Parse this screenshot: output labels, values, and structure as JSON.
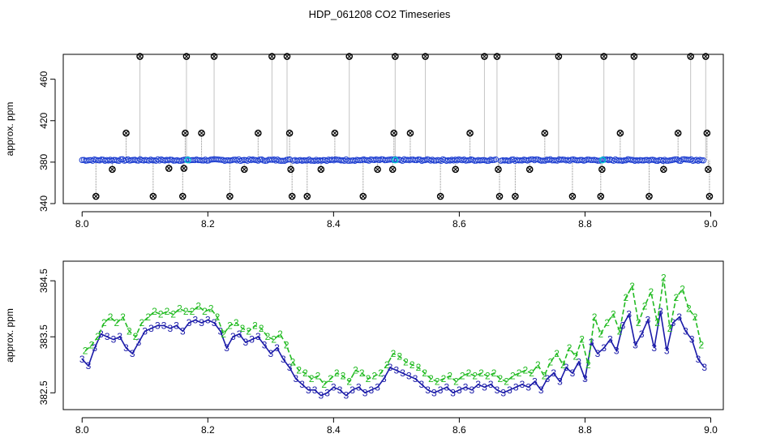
{
  "title": "HDP_061208  CO2 Timeseries",
  "chart_data": [
    {
      "type": "scatter",
      "title": "HDP_061208  CO2 Timeseries",
      "ylabel": "approx. ppm",
      "xlim": [
        7.97,
        9.02
      ],
      "ylim": [
        340,
        484
      ],
      "x_ticks": [
        8.0,
        8.2,
        8.4,
        8.6,
        8.8,
        9.0
      ],
      "x_tick_labels": [
        "8.0",
        "8.2",
        "8.4",
        "8.6",
        "8.8",
        "9.0"
      ],
      "y_ticks": [
        340,
        380,
        420,
        460
      ],
      "y_tick_labels": [
        "340",
        "380",
        "420",
        "460"
      ],
      "baseline": {
        "level": 382,
        "color": "#1f3fd0",
        "marker": "open-circle"
      },
      "baseline_gaps": [
        8.333,
        8.662
      ],
      "highlight_points": {
        "x": [
          8.168,
          8.498,
          8.828
        ],
        "y": [
          382,
          382,
          382
        ],
        "color": "#00d0d0"
      },
      "outliers": {
        "color": "#000000",
        "marker": "circle-x",
        "x": [
          8.022,
          8.048,
          8.07,
          8.092,
          8.113,
          8.138,
          8.16,
          8.162,
          8.164,
          8.166,
          8.19,
          8.21,
          8.235,
          8.258,
          8.28,
          8.302,
          8.326,
          8.33,
          8.332,
          8.334,
          8.358,
          8.38,
          8.402,
          8.425,
          8.447,
          8.47,
          8.494,
          8.496,
          8.498,
          8.522,
          8.546,
          8.57,
          8.594,
          8.617,
          8.64,
          8.66,
          8.662,
          8.664,
          8.689,
          8.712,
          8.736,
          8.758,
          8.78,
          8.825,
          8.827,
          8.83,
          8.856,
          8.878,
          8.902,
          8.925,
          8.948,
          8.968,
          8.992,
          8.994,
          8.996,
          8.998
        ],
        "y": [
          347,
          373,
          408,
          482,
          347,
          374,
          347,
          374,
          408,
          482,
          408,
          482,
          347,
          373,
          408,
          482,
          482,
          408,
          373,
          347,
          347,
          373,
          408,
          482,
          347,
          373,
          373,
          408,
          482,
          408,
          482,
          347,
          373,
          408,
          482,
          482,
          373,
          347,
          347,
          373,
          408,
          482,
          347,
          347,
          373,
          482,
          408,
          482,
          347,
          373,
          408,
          482,
          482,
          408,
          373,
          347
        ]
      }
    },
    {
      "type": "line",
      "ylabel": "approx. ppm",
      "xlim": [
        7.97,
        9.02
      ],
      "ylim": [
        382.2,
        384.85
      ],
      "x_ticks": [
        8.0,
        8.2,
        8.4,
        8.6,
        8.8,
        9.0
      ],
      "x_tick_labels": [
        "8.0",
        "8.2",
        "8.4",
        "8.6",
        "8.8",
        "9.0"
      ],
      "y_ticks": [
        382.5,
        383.5,
        384.5
      ],
      "y_tick_labels": [
        "382.5",
        "383.5",
        "384.5"
      ],
      "series": [
        {
          "marker": "3",
          "color": "#1a1aa8",
          "x": [
            8.0,
            8.01,
            8.02,
            8.03,
            8.04,
            8.05,
            8.06,
            8.07,
            8.08,
            8.09,
            8.1,
            8.11,
            8.12,
            8.13,
            8.14,
            8.15,
            8.16,
            8.17,
            8.18,
            8.19,
            8.2,
            8.21,
            8.22,
            8.23,
            8.24,
            8.25,
            8.26,
            8.27,
            8.28,
            8.29,
            8.3,
            8.31,
            8.32,
            8.33,
            8.34,
            8.35,
            8.36,
            8.37,
            8.38,
            8.39,
            8.4,
            8.41,
            8.42,
            8.43,
            8.44,
            8.45,
            8.46,
            8.47,
            8.48,
            8.49,
            8.5,
            8.51,
            8.52,
            8.53,
            8.54,
            8.55,
            8.56,
            8.57,
            8.58,
            8.59,
            8.6,
            8.61,
            8.62,
            8.63,
            8.64,
            8.65,
            8.66,
            8.67,
            8.68,
            8.69,
            8.7,
            8.71,
            8.72,
            8.73,
            8.74,
            8.75,
            8.76,
            8.77,
            8.78,
            8.79,
            8.8,
            8.81,
            8.82,
            8.83,
            8.84,
            8.85,
            8.86,
            8.87,
            8.88,
            8.89,
            8.9,
            8.91,
            8.92,
            8.93,
            8.94,
            8.95,
            8.96,
            8.97,
            8.98,
            8.99
          ],
          "values": [
            383.1,
            382.98,
            383.3,
            383.55,
            383.5,
            383.45,
            383.5,
            383.3,
            383.2,
            383.4,
            383.6,
            383.65,
            383.7,
            383.7,
            383.65,
            383.7,
            383.6,
            383.75,
            383.8,
            383.75,
            383.8,
            383.75,
            383.6,
            383.3,
            383.5,
            383.55,
            383.4,
            383.45,
            383.5,
            383.35,
            383.2,
            383.3,
            383.1,
            382.95,
            382.75,
            382.65,
            382.55,
            382.55,
            382.45,
            382.5,
            382.6,
            382.55,
            382.45,
            382.55,
            382.6,
            382.5,
            382.55,
            382.6,
            382.75,
            382.95,
            382.9,
            382.85,
            382.8,
            382.75,
            382.65,
            382.55,
            382.5,
            382.55,
            382.6,
            382.5,
            382.55,
            382.6,
            382.55,
            382.65,
            382.6,
            382.65,
            382.55,
            382.5,
            382.55,
            382.6,
            382.65,
            382.6,
            382.7,
            382.55,
            382.75,
            382.85,
            382.7,
            382.95,
            382.85,
            383.05,
            382.75,
            383.4,
            383.2,
            383.3,
            383.45,
            383.25,
            383.7,
            383.9,
            383.35,
            383.55,
            383.8,
            383.3,
            383.95,
            383.25,
            383.75,
            383.85,
            383.6,
            383.45,
            383.1,
            382.95
          ]
        },
        {
          "marker": "2",
          "color": "#22bb22",
          "x": [
            8.005,
            8.015,
            8.025,
            8.035,
            8.045,
            8.055,
            8.065,
            8.075,
            8.085,
            8.095,
            8.105,
            8.115,
            8.125,
            8.135,
            8.145,
            8.155,
            8.165,
            8.175,
            8.185,
            8.195,
            8.205,
            8.215,
            8.225,
            8.235,
            8.245,
            8.255,
            8.265,
            8.275,
            8.285,
            8.295,
            8.305,
            8.315,
            8.325,
            8.335,
            8.345,
            8.355,
            8.365,
            8.375,
            8.385,
            8.395,
            8.405,
            8.415,
            8.425,
            8.435,
            8.445,
            8.455,
            8.465,
            8.475,
            8.485,
            8.495,
            8.505,
            8.515,
            8.525,
            8.535,
            8.545,
            8.555,
            8.565,
            8.575,
            8.585,
            8.595,
            8.605,
            8.615,
            8.625,
            8.635,
            8.645,
            8.655,
            8.665,
            8.675,
            8.685,
            8.695,
            8.705,
            8.715,
            8.725,
            8.735,
            8.745,
            8.755,
            8.765,
            8.775,
            8.785,
            8.795,
            8.805,
            8.815,
            8.825,
            8.835,
            8.845,
            8.855,
            8.865,
            8.875,
            8.885,
            8.895,
            8.905,
            8.915,
            8.925,
            8.935,
            8.945,
            8.955,
            8.965,
            8.975,
            8.985
          ],
          "values": [
            383.25,
            383.35,
            383.5,
            383.75,
            383.85,
            383.75,
            383.85,
            383.6,
            383.5,
            383.75,
            383.85,
            383.95,
            383.9,
            383.95,
            383.9,
            384.0,
            383.95,
            383.95,
            384.05,
            383.95,
            384.0,
            383.85,
            383.55,
            383.7,
            383.75,
            383.65,
            383.6,
            383.7,
            383.65,
            383.5,
            383.45,
            383.55,
            383.35,
            383.05,
            382.9,
            382.85,
            382.75,
            382.8,
            382.65,
            382.75,
            382.85,
            382.8,
            382.7,
            382.9,
            382.85,
            382.75,
            382.8,
            382.85,
            383.0,
            383.2,
            383.15,
            383.05,
            383.0,
            382.95,
            382.85,
            382.75,
            382.7,
            382.75,
            382.8,
            382.7,
            382.8,
            382.85,
            382.8,
            382.85,
            382.8,
            382.85,
            382.75,
            382.7,
            382.8,
            382.85,
            382.9,
            382.85,
            383.0,
            382.8,
            383.05,
            383.2,
            383.0,
            383.3,
            383.15,
            383.45,
            383.0,
            383.85,
            383.55,
            383.75,
            383.9,
            383.6,
            384.2,
            384.4,
            383.75,
            384.05,
            384.3,
            383.75,
            384.55,
            383.65,
            384.2,
            384.35,
            384.0,
            383.85,
            383.35
          ]
        }
      ]
    }
  ]
}
